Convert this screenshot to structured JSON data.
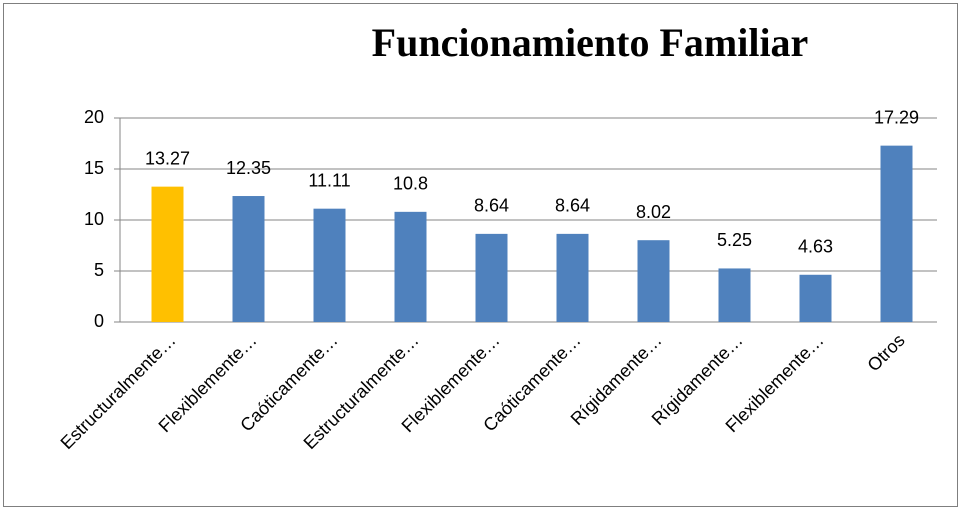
{
  "chart_data": {
    "type": "bar",
    "title": "Funcionamiento Familiar",
    "categories": [
      "Estructuralmente…",
      "Flexiblemente…",
      "Caóticamente…",
      "Estructuralmente…",
      "Flexiblemente…",
      "Caóticamente…",
      "Rígidamente…",
      "Rígidamente…",
      "Flexiblemente…",
      "Otros"
    ],
    "values": [
      13.27,
      12.35,
      11.11,
      10.8,
      8.64,
      8.64,
      8.02,
      5.25,
      4.63,
      17.29
    ],
    "colors": [
      "#ffc000",
      "#4f81bd",
      "#4f81bd",
      "#4f81bd",
      "#4f81bd",
      "#4f81bd",
      "#4f81bd",
      "#4f81bd",
      "#4f81bd",
      "#4f81bd"
    ],
    "ylim": [
      0,
      20
    ],
    "yticks": [
      0,
      5,
      10,
      15,
      20
    ],
    "grid": true
  }
}
